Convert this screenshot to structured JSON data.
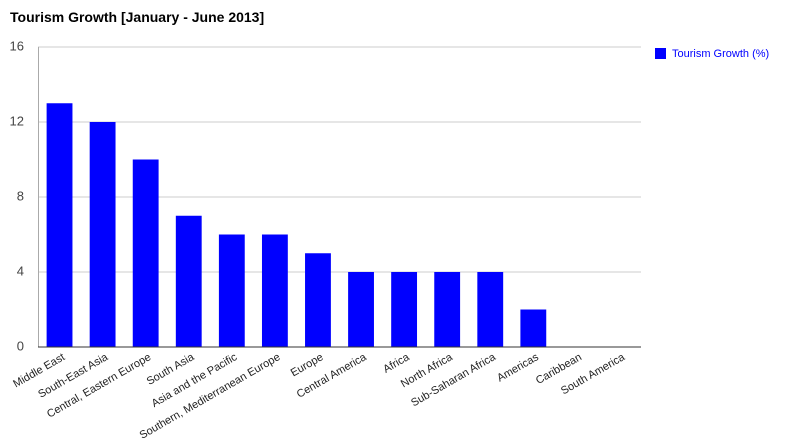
{
  "chart_data": {
    "type": "bar",
    "title": "Tourism Growth [January - June 2013]",
    "categories": [
      "Middle East",
      "South-East Asia",
      "Central, Eastern Europe",
      "South Asia",
      "Asia and the Pacific",
      "Southern, Mediterranean Europe",
      "Europe",
      "Central America",
      "Africa",
      "North Africa",
      "Sub-Saharan Africa",
      "Americas",
      "Caribbean",
      "South America"
    ],
    "series": [
      {
        "name": "Tourism Growth (%)",
        "color": "#0000ff",
        "values": [
          13,
          12,
          10,
          7,
          6,
          6,
          5,
          4,
          4,
          4,
          4,
          2,
          0,
          0
        ]
      }
    ],
    "ylim": [
      0,
      16
    ],
    "yticks": [
      0,
      4,
      8,
      12,
      16
    ],
    "grid": true,
    "legend": "right"
  }
}
